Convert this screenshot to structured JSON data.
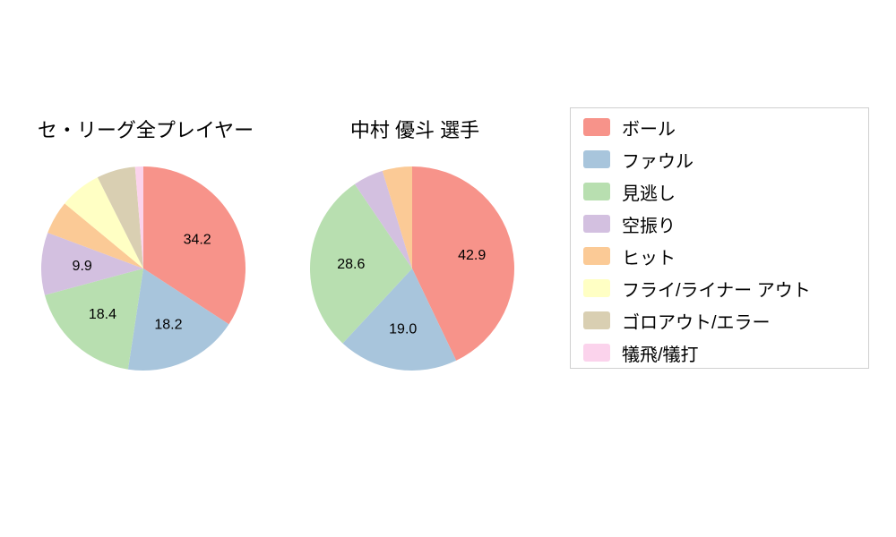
{
  "charts": {
    "left_title": "セ・リーグ全プレイヤー",
    "right_title": "中村 優斗  選手"
  },
  "legend": {
    "items": [
      {
        "label": "ボール",
        "color": "#f7938a"
      },
      {
        "label": "ファウル",
        "color": "#a8c5dc"
      },
      {
        "label": "見逃し",
        "color": "#b8dfb0"
      },
      {
        "label": "空振り",
        "color": "#d3c0e0"
      },
      {
        "label": "ヒット",
        "color": "#fbca96"
      },
      {
        "label": "フライ/ライナー アウト",
        "color": "#ffffc4"
      },
      {
        "label": "ゴロアウト/エラー",
        "color": "#d9cfb2"
      },
      {
        "label": "犠飛/犠打",
        "color": "#fbd3ec"
      }
    ]
  },
  "chart_data": [
    {
      "type": "pie",
      "title": "セ・リーグ全プレイヤー",
      "categories": [
        "ボール",
        "ファウル",
        "見逃し",
        "空振り",
        "ヒット",
        "フライ/ライナー アウト",
        "ゴロアウト/エラー",
        "犠飛/犠打"
      ],
      "values": [
        34.2,
        18.2,
        18.4,
        9.9,
        5.3,
        6.6,
        6.1,
        1.3
      ],
      "labels": [
        "34.2",
        "18.2",
        "18.4",
        "9.9",
        "",
        "",
        "",
        ""
      ],
      "start_angle_deg": 0,
      "direction": "clockwise",
      "legend_position": "right"
    },
    {
      "type": "pie",
      "title": "中村 優斗  選手",
      "categories": [
        "ボール",
        "ファウル",
        "見逃し",
        "空振り",
        "ヒット"
      ],
      "values": [
        42.9,
        19.0,
        28.6,
        4.8,
        4.7
      ],
      "labels": [
        "42.9",
        "19.0",
        "28.6",
        "",
        ""
      ],
      "start_angle_deg": 0,
      "direction": "clockwise",
      "legend_position": "right"
    }
  ]
}
